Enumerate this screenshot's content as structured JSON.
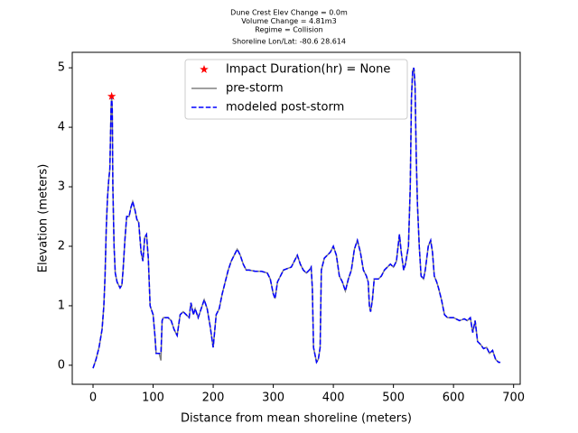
{
  "chart_data": {
    "type": "line",
    "title": [
      "Dune Crest Elev Change = 0.0m",
      "Volume Change = 4.81m3",
      "Regime = Collision",
      "Shoreline Lon/Lat: -80.6 28.614"
    ],
    "xlabel": "Distance from mean shoreline (meters)",
    "ylabel": "Elevation (meters)",
    "xlim": [
      -34.6,
      711
    ],
    "ylim": [
      -0.32,
      5.26
    ],
    "xticks": [
      0,
      100,
      200,
      300,
      400,
      500,
      600,
      700
    ],
    "yticks": [
      0,
      1,
      2,
      3,
      4,
      5
    ],
    "legend": "upper center",
    "series": [
      {
        "name": "Impact Duration(hr) = None",
        "color": "#ff0000",
        "marker": "star",
        "x": [
          31
        ],
        "values": [
          4.52
        ]
      },
      {
        "name": "pre-storm",
        "color": "#808080",
        "style": "solid",
        "x": [
          0,
          5,
          10,
          15,
          18,
          20,
          22,
          24,
          26,
          28,
          30,
          31,
          32,
          33,
          35,
          37,
          40,
          45,
          48,
          50,
          53,
          56,
          60,
          63,
          66,
          70,
          73,
          76,
          80,
          83,
          86,
          89,
          92,
          95,
          100,
          103,
          105,
          110,
          113,
          115,
          117,
          125,
          130,
          135,
          140,
          145,
          150,
          155,
          160,
          163,
          167,
          170,
          175,
          180,
          185,
          190,
          195,
          200,
          205,
          210,
          215,
          220,
          225,
          230,
          235,
          240,
          245,
          250,
          255,
          260,
          270,
          280,
          290,
          295,
          300,
          303,
          307,
          312,
          317,
          322,
          330,
          335,
          340,
          345,
          350,
          355,
          360,
          363,
          365,
          367,
          370,
          372,
          375,
          378,
          380,
          385,
          390,
          395,
          400,
          405,
          410,
          415,
          420,
          425,
          430,
          435,
          440,
          445,
          450,
          455,
          458,
          460,
          462,
          465,
          468,
          475,
          480,
          485,
          490,
          495,
          500,
          505,
          510,
          513,
          517,
          520,
          525,
          528,
          530,
          532,
          534,
          536,
          538,
          540,
          543,
          546,
          550,
          553,
          558,
          562,
          565,
          568,
          572,
          575,
          580,
          585,
          590,
          600,
          610,
          618,
          623,
          628,
          632,
          636,
          640,
          645,
          650,
          655,
          660,
          665,
          670,
          675,
          678
        ],
        "values": [
          -0.05,
          0.1,
          0.3,
          0.6,
          1.0,
          1.5,
          2.3,
          2.8,
          3.1,
          3.3,
          4.3,
          4.52,
          4.3,
          3.0,
          2.0,
          1.55,
          1.4,
          1.3,
          1.35,
          1.6,
          2.1,
          2.5,
          2.5,
          2.65,
          2.75,
          2.6,
          2.45,
          2.4,
          1.9,
          1.75,
          2.15,
          2.2,
          1.8,
          1.0,
          0.85,
          0.5,
          0.2,
          0.2,
          0.08,
          0.75,
          0.8,
          0.8,
          0.75,
          0.6,
          0.5,
          0.85,
          0.9,
          0.85,
          0.8,
          1.05,
          0.85,
          0.95,
          0.8,
          0.95,
          1.1,
          0.95,
          0.65,
          0.3,
          0.85,
          0.95,
          1.2,
          1.4,
          1.6,
          1.75,
          1.85,
          1.95,
          1.85,
          1.7,
          1.6,
          1.6,
          1.58,
          1.58,
          1.55,
          1.45,
          1.2,
          1.12,
          1.4,
          1.5,
          1.6,
          1.62,
          1.65,
          1.75,
          1.85,
          1.7,
          1.6,
          1.55,
          1.6,
          1.65,
          1.3,
          0.3,
          0.15,
          0.05,
          0.1,
          0.3,
          1.6,
          1.8,
          1.85,
          1.9,
          2.0,
          1.85,
          1.5,
          1.4,
          1.25,
          1.45,
          1.6,
          1.95,
          2.1,
          1.9,
          1.6,
          1.5,
          1.4,
          1.0,
          0.9,
          1.1,
          1.45,
          1.45,
          1.5,
          1.6,
          1.65,
          1.7,
          1.65,
          1.75,
          2.2,
          1.9,
          1.6,
          1.7,
          2.0,
          3.0,
          4.5,
          4.95,
          5.0,
          4.7,
          3.5,
          2.7,
          2.0,
          1.5,
          1.45,
          1.6,
          2.0,
          2.1,
          1.9,
          1.5,
          1.4,
          1.3,
          1.1,
          0.85,
          0.8,
          0.8,
          0.75,
          0.78,
          0.75,
          0.8,
          0.55,
          0.75,
          0.4,
          0.35,
          0.28,
          0.3,
          0.2,
          0.25,
          0.1,
          0.05,
          0.05
        ]
      },
      {
        "name": "modeled post-storm",
        "color": "#0000ff",
        "style": "dashed",
        "x": [
          0,
          5,
          10,
          15,
          18,
          20,
          22,
          24,
          26,
          28,
          30,
          31,
          32,
          33,
          35,
          37,
          40,
          45,
          48,
          50,
          53,
          56,
          60,
          63,
          66,
          70,
          73,
          76,
          80,
          83,
          86,
          89,
          92,
          95,
          100,
          103,
          105,
          110,
          113,
          115,
          117,
          125,
          130,
          135,
          140,
          145,
          150,
          155,
          160,
          163,
          167,
          170,
          175,
          180,
          185,
          190,
          195,
          200,
          205,
          210,
          215,
          220,
          225,
          230,
          235,
          240,
          245,
          250,
          255,
          260,
          270,
          280,
          290,
          295,
          300,
          303,
          307,
          312,
          317,
          322,
          330,
          335,
          340,
          345,
          350,
          355,
          360,
          363,
          365,
          367,
          370,
          372,
          375,
          378,
          380,
          385,
          390,
          395,
          400,
          405,
          410,
          415,
          420,
          425,
          430,
          435,
          440,
          445,
          450,
          455,
          458,
          460,
          462,
          465,
          468,
          475,
          480,
          485,
          490,
          495,
          500,
          505,
          510,
          513,
          517,
          520,
          525,
          528,
          530,
          532,
          534,
          536,
          538,
          540,
          543,
          546,
          550,
          553,
          558,
          562,
          565,
          568,
          572,
          575,
          580,
          585,
          590,
          600,
          610,
          618,
          623,
          628,
          632,
          636,
          640,
          645,
          650,
          655,
          660,
          665,
          670,
          675,
          678
        ],
        "values": [
          -0.05,
          0.1,
          0.3,
          0.6,
          1.0,
          1.5,
          2.3,
          2.8,
          3.1,
          3.3,
          4.3,
          4.52,
          4.3,
          3.0,
          2.0,
          1.55,
          1.4,
          1.3,
          1.35,
          1.6,
          2.1,
          2.5,
          2.5,
          2.65,
          2.75,
          2.6,
          2.45,
          2.4,
          1.9,
          1.75,
          2.15,
          2.2,
          1.8,
          1.0,
          0.85,
          0.5,
          0.2,
          0.2,
          0.2,
          0.75,
          0.8,
          0.8,
          0.75,
          0.6,
          0.5,
          0.85,
          0.9,
          0.85,
          0.8,
          1.05,
          0.85,
          0.95,
          0.8,
          0.95,
          1.1,
          0.95,
          0.65,
          0.3,
          0.85,
          0.95,
          1.2,
          1.4,
          1.6,
          1.75,
          1.85,
          1.95,
          1.85,
          1.7,
          1.6,
          1.6,
          1.58,
          1.58,
          1.55,
          1.45,
          1.2,
          1.12,
          1.4,
          1.5,
          1.6,
          1.62,
          1.65,
          1.75,
          1.85,
          1.7,
          1.6,
          1.55,
          1.6,
          1.65,
          1.3,
          0.3,
          0.15,
          0.05,
          0.1,
          0.3,
          1.6,
          1.8,
          1.85,
          1.9,
          2.0,
          1.85,
          1.5,
          1.4,
          1.25,
          1.45,
          1.6,
          1.95,
          2.1,
          1.9,
          1.6,
          1.5,
          1.4,
          1.0,
          0.9,
          1.1,
          1.45,
          1.45,
          1.5,
          1.6,
          1.65,
          1.7,
          1.65,
          1.75,
          2.2,
          1.9,
          1.6,
          1.7,
          2.0,
          3.0,
          4.5,
          4.95,
          5.0,
          4.7,
          3.5,
          2.7,
          2.0,
          1.5,
          1.45,
          1.6,
          2.0,
          2.1,
          1.9,
          1.5,
          1.4,
          1.3,
          1.1,
          0.85,
          0.8,
          0.8,
          0.75,
          0.78,
          0.75,
          0.8,
          0.55,
          0.75,
          0.4,
          0.35,
          0.28,
          0.3,
          0.2,
          0.25,
          0.1,
          0.05,
          0.05
        ]
      }
    ]
  }
}
